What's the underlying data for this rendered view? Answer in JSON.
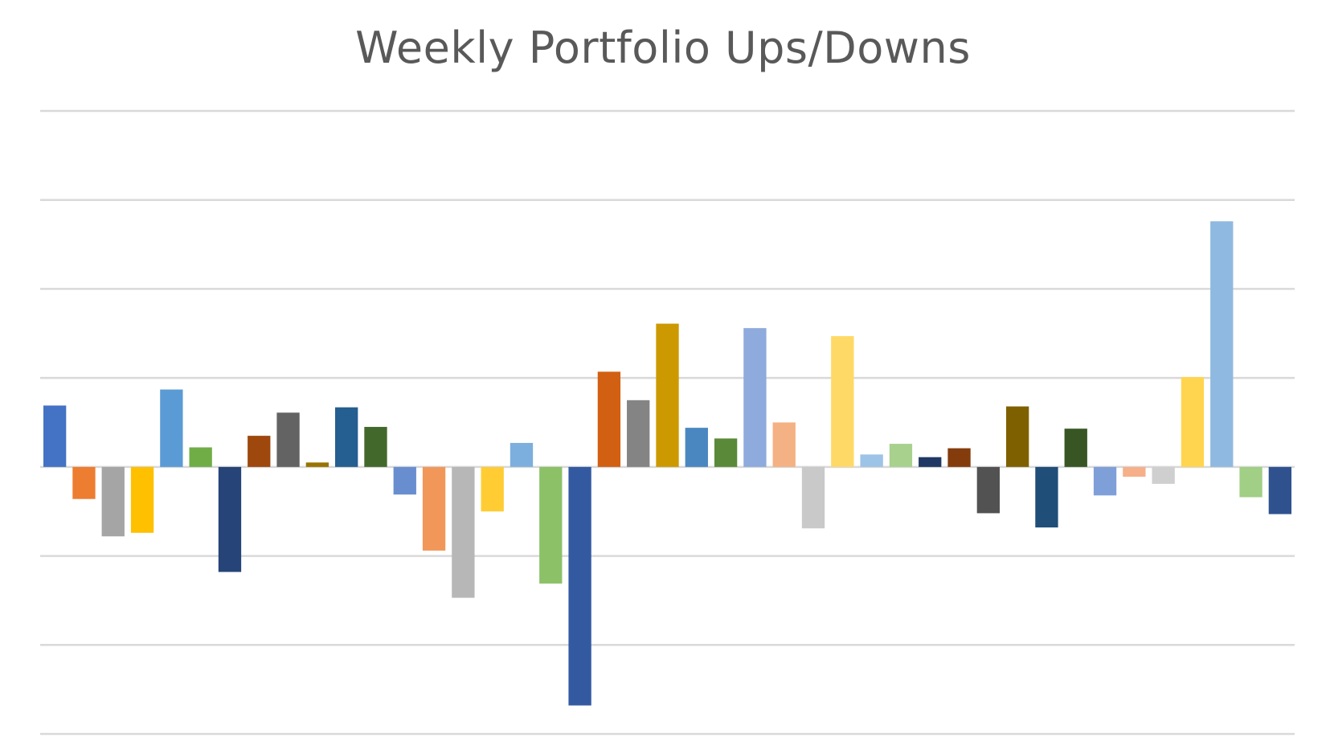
{
  "chart_data": {
    "type": "bar",
    "title": "Weekly Portfolio Ups/Downs",
    "xlabel": "",
    "ylabel": "",
    "ylim": [
      -3,
      4
    ],
    "grid": true,
    "legend": "none",
    "y_tick_step": 1,
    "values": [
      0.69,
      -0.36,
      -0.78,
      -0.74,
      0.87,
      0.22,
      -1.18,
      0.35,
      0.61,
      0.05,
      0.67,
      0.45,
      -0.31,
      -0.94,
      -1.47,
      -0.5,
      0.27,
      -1.31,
      -2.68,
      1.07,
      0.75,
      1.61,
      0.44,
      0.32,
      1.56,
      0.5,
      -0.69,
      1.47,
      0.14,
      0.26,
      0.11,
      0.21,
      -0.52,
      0.68,
      -0.68,
      0.43,
      -0.32,
      -0.11,
      -0.19,
      1.01,
      2.76,
      -0.34,
      -0.53
    ],
    "colors": [
      "#4472C4",
      "#ED7D31",
      "#A5A5A5",
      "#FFC000",
      "#5B9BD5",
      "#70AD47",
      "#264478",
      "#9E480E",
      "#636363",
      "#997300",
      "#255E91",
      "#43682B",
      "#698ED0",
      "#F1975A",
      "#B7B7B7",
      "#FFCD33",
      "#7CAFDD",
      "#8CC168",
      "#335AA1",
      "#D26012",
      "#848484",
      "#CC9A00",
      "#4A87C1",
      "#5A8A39",
      "#8FAADC",
      "#F4B183",
      "#C9C9C9",
      "#FFD966",
      "#9DC3E6",
      "#A9D18E",
      "#203864",
      "#843C0C",
      "#525252",
      "#7F6000",
      "#1F4E79",
      "#375623",
      "#7F9FD8",
      "#F5B08A",
      "#CFCFCF",
      "#FFD54F",
      "#8FB9E0",
      "#A0CF85",
      "#2F528F"
    ],
    "grid_color": "#D9D9D9"
  }
}
